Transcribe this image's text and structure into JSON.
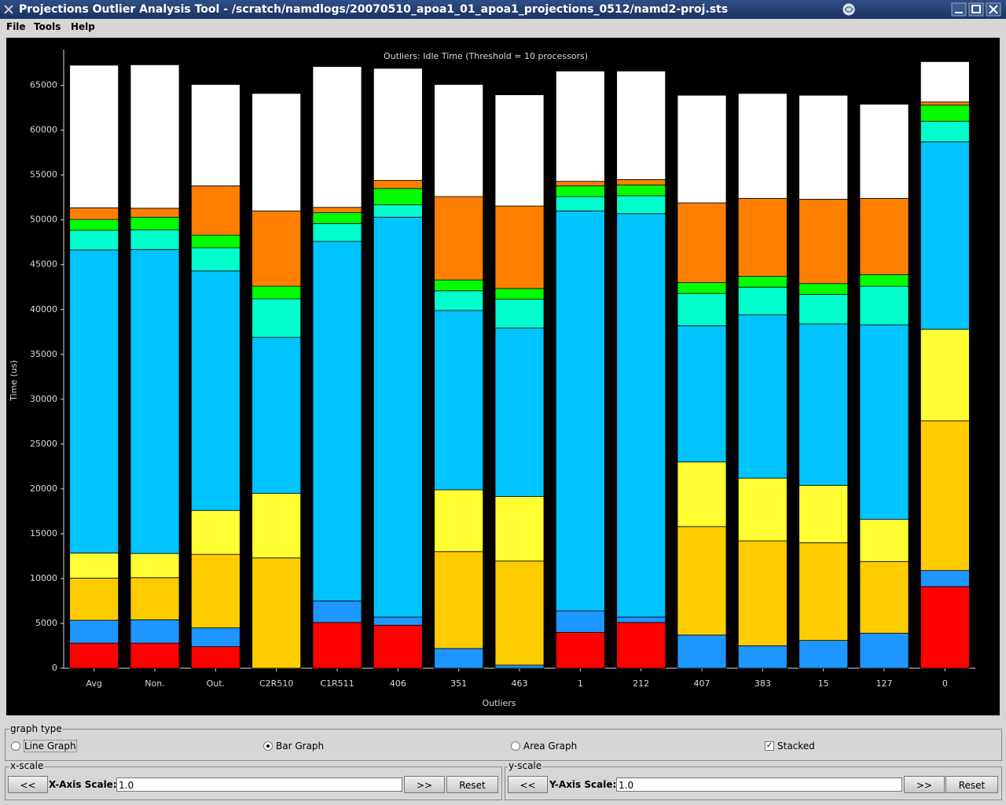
{
  "window": {
    "title": "Projections Outlier Analysis Tool - /scratch/namdlogs/20070510_apoa1_01_apoa1_projections_0512/namd2-proj.sts"
  },
  "menu": [
    "File",
    "Tools",
    "Help"
  ],
  "chart_data": {
    "type": "bar",
    "stacked": true,
    "title": "Outliers: Idle Time (Threshold = 10 processors)",
    "x_label": "Outliers",
    "y_label": "Time (us)",
    "categories": [
      "Avg",
      "Non.",
      "Out.",
      "C2R510",
      "C1R511",
      "406",
      "351",
      "463",
      "1",
      "212",
      "407",
      "383",
      "15",
      "127",
      "0"
    ],
    "ylim": [
      0,
      69000
    ],
    "yticks": [
      0,
      5000,
      10000,
      15000,
      20000,
      25000,
      30000,
      35000,
      40000,
      45000,
      50000,
      55000,
      60000,
      65000
    ],
    "series": [
      {
        "color": "#ff0000",
        "values": [
          2800,
          2800,
          2400,
          0,
          5100,
          4800,
          0,
          0,
          4000,
          5100,
          0,
          0,
          0,
          0,
          9100
        ]
      },
      {
        "color": "#1e96ff",
        "values": [
          2550,
          2600,
          2100,
          0,
          2400,
          900,
          2200,
          350,
          2400,
          600,
          3700,
          2500,
          3100,
          3900,
          1800
        ]
      },
      {
        "color": "#ffcc00",
        "values": [
          4700,
          4700,
          8200,
          12300,
          0,
          0,
          10800,
          11600,
          0,
          0,
          12100,
          11700,
          10900,
          8000,
          16700
        ]
      },
      {
        "color": "#ffff33",
        "values": [
          2800,
          2700,
          4900,
          7200,
          0,
          0,
          6900,
          7200,
          0,
          0,
          7200,
          7000,
          6400,
          4700,
          10200
        ]
      },
      {
        "color": "#00c4ff",
        "values": [
          33800,
          33900,
          26700,
          17400,
          40100,
          44600,
          20000,
          18800,
          44600,
          45000,
          15200,
          18200,
          18000,
          21700,
          20900
        ]
      },
      {
        "color": "#00ffcc",
        "values": [
          2200,
          2200,
          2600,
          4300,
          2000,
          1400,
          2200,
          3200,
          1600,
          2000,
          3600,
          3100,
          3300,
          4300,
          2300
        ]
      },
      {
        "color": "#00ff00",
        "values": [
          1200,
          1400,
          1400,
          1400,
          1200,
          1800,
          1200,
          1200,
          1200,
          1200,
          1200,
          1200,
          1200,
          1300,
          1800
        ]
      },
      {
        "color": "#ff8000",
        "values": [
          1300,
          1000,
          5500,
          8400,
          600,
          900,
          9300,
          9200,
          500,
          600,
          8900,
          8700,
          9400,
          8500,
          350
        ]
      },
      {
        "color": "#ffffff",
        "values": [
          15900,
          16000,
          11300,
          13100,
          15700,
          12500,
          12500,
          12400,
          12300,
          12100,
          12000,
          11700,
          11600,
          10500,
          4500
        ]
      }
    ]
  },
  "controls": {
    "graph_type": {
      "title": "graph type",
      "options": [
        {
          "label": "Line Graph",
          "selected": false
        },
        {
          "label": "Bar Graph",
          "selected": true
        },
        {
          "label": "Area Graph",
          "selected": false
        }
      ],
      "stacked": {
        "label": "Stacked",
        "checked": true
      }
    },
    "x_scale": {
      "title": "x-scale",
      "decrease": "<<",
      "label": "X-Axis Scale:",
      "value": "1.0",
      "increase": ">>",
      "reset": "Reset"
    },
    "y_scale": {
      "title": "y-scale",
      "decrease": "<<",
      "label": "Y-Axis Scale:",
      "value": "1.0",
      "increase": ">>",
      "reset": "Reset"
    }
  }
}
